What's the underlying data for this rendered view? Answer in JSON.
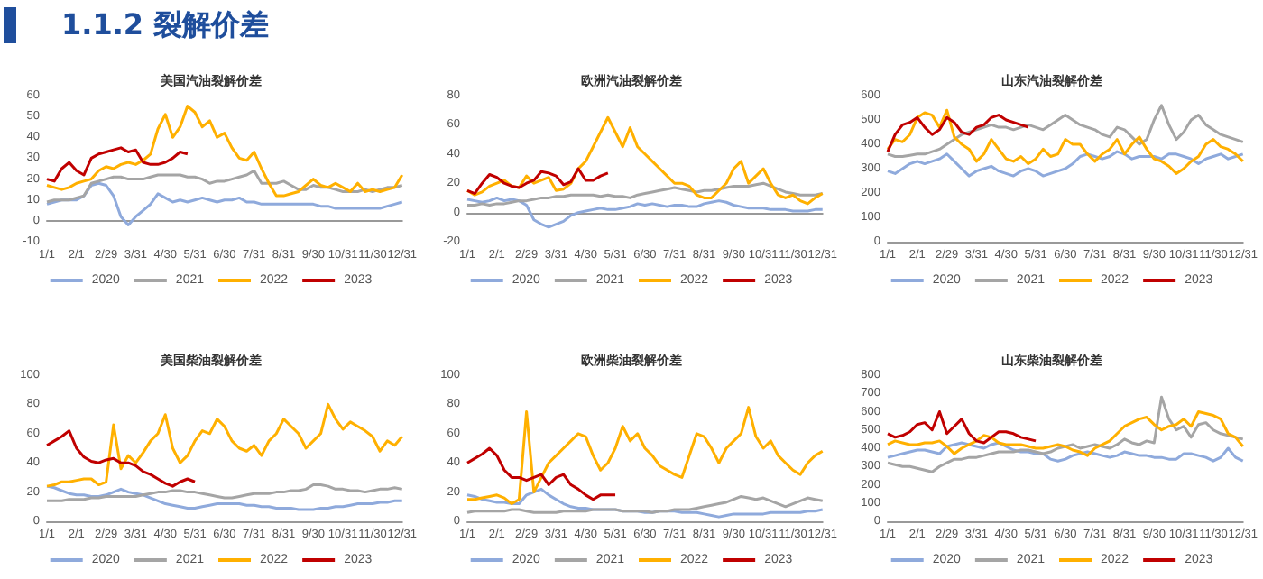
{
  "chart_data": [
    {
      "type": "other",
      "title": "1.1.2 裂解价差"
    },
    {
      "type": "line",
      "title": "美国汽油裂解价差",
      "legend": "bottom",
      "categories": [
        "1/1",
        null,
        null,
        null,
        "2/1",
        null,
        null,
        null,
        "2/29",
        null,
        null,
        null,
        "3/31",
        null,
        null,
        null,
        "4/30",
        null,
        null,
        null,
        "5/31",
        null,
        null,
        null,
        "6/30",
        null,
        null,
        null,
        "7/31",
        null,
        null,
        null,
        "8/31",
        null,
        null,
        null,
        "9/30",
        null,
        null,
        null,
        "10/31",
        null,
        null,
        null,
        "11/30",
        null,
        null,
        null,
        "12/31"
      ],
      "ylim": [
        -10,
        60
      ],
      "yticks": [
        -10,
        0,
        10,
        20,
        30,
        40,
        50,
        60
      ],
      "series": [
        {
          "name": "2020",
          "color": "#8faadc",
          "values": [
            8,
            9,
            10,
            10,
            10,
            12,
            17,
            18,
            17,
            12,
            2,
            -2,
            2,
            5,
            8,
            13,
            11,
            9,
            10,
            9,
            10,
            11,
            10,
            9,
            10,
            10,
            11,
            9,
            9,
            8,
            8,
            8,
            8,
            8,
            8,
            8,
            8,
            7,
            7,
            6,
            6,
            6,
            6,
            6,
            6,
            6,
            7,
            8,
            9
          ]
        },
        {
          "name": "2021",
          "color": "#a5a5a5",
          "values": [
            9,
            10,
            10,
            10,
            11,
            12,
            18,
            19,
            20,
            21,
            21,
            20,
            20,
            20,
            21,
            22,
            22,
            22,
            22,
            21,
            21,
            20,
            18,
            19,
            19,
            20,
            21,
            22,
            24,
            18,
            18,
            18,
            19,
            17,
            15,
            15,
            17,
            16,
            16,
            15,
            14,
            14,
            14,
            15,
            14,
            15,
            16,
            16,
            17
          ]
        },
        {
          "name": "2022",
          "color": "#ffb000",
          "values": [
            17,
            16,
            15,
            16,
            18,
            19,
            20,
            24,
            26,
            25,
            27,
            28,
            27,
            29,
            32,
            44,
            51,
            40,
            45,
            55,
            52,
            45,
            48,
            40,
            42,
            35,
            30,
            29,
            33,
            25,
            18,
            12,
            12,
            13,
            14,
            17,
            20,
            17,
            16,
            18,
            16,
            14,
            18,
            14,
            15,
            14,
            15,
            16,
            22
          ]
        },
        {
          "name": "2023",
          "color": "#c00000",
          "values": [
            20,
            19,
            25,
            28,
            24,
            22,
            30,
            32,
            33,
            34,
            35,
            33,
            34,
            28,
            27,
            27,
            28,
            30,
            33,
            32,
            null,
            null,
            null,
            null,
            null,
            null,
            null,
            null,
            null,
            null,
            null,
            null,
            null,
            null,
            null,
            null,
            null,
            null,
            null,
            null,
            null,
            null,
            null,
            null,
            null,
            null,
            null,
            null,
            null
          ]
        }
      ]
    },
    {
      "type": "line",
      "title": "欧洲汽油裂解价差",
      "legend": "bottom",
      "categories": [
        "1/1",
        null,
        null,
        null,
        "2/1",
        null,
        null,
        null,
        "2/29",
        null,
        null,
        null,
        "3/31",
        null,
        null,
        null,
        "4/30",
        null,
        null,
        null,
        "5/31",
        null,
        null,
        null,
        "6/30",
        null,
        null,
        null,
        "7/31",
        null,
        null,
        null,
        "8/31",
        null,
        null,
        null,
        "9/30",
        null,
        null,
        null,
        "10/31",
        null,
        null,
        null,
        "11/30",
        null,
        null,
        null,
        "12/31"
      ],
      "ylim": [
        -20,
        80
      ],
      "yticks": [
        -20,
        0,
        20,
        40,
        60,
        80
      ],
      "series": [
        {
          "name": "2020",
          "color": "#8faadc",
          "values": [
            9,
            8,
            7,
            8,
            10,
            8,
            9,
            8,
            5,
            -5,
            -8,
            -10,
            -8,
            -6,
            -2,
            0,
            1,
            2,
            3,
            2,
            2,
            3,
            4,
            6,
            5,
            6,
            5,
            4,
            5,
            5,
            4,
            4,
            6,
            7,
            8,
            7,
            5,
            4,
            3,
            3,
            3,
            2,
            2,
            2,
            1,
            1,
            1,
            2,
            2
          ]
        },
        {
          "name": "2021",
          "color": "#a5a5a5",
          "values": [
            5,
            5,
            6,
            5,
            6,
            6,
            7,
            8,
            8,
            9,
            10,
            10,
            11,
            11,
            12,
            12,
            12,
            12,
            11,
            12,
            11,
            11,
            10,
            12,
            13,
            14,
            15,
            16,
            17,
            16,
            15,
            14,
            15,
            15,
            16,
            17,
            18,
            18,
            18,
            19,
            20,
            18,
            16,
            14,
            13,
            12,
            12,
            12,
            13
          ]
        },
        {
          "name": "2022",
          "color": "#ffb000",
          "values": [
            15,
            12,
            14,
            18,
            20,
            22,
            18,
            17,
            25,
            20,
            22,
            24,
            15,
            16,
            20,
            30,
            35,
            45,
            55,
            65,
            55,
            45,
            58,
            45,
            40,
            35,
            30,
            25,
            20,
            20,
            18,
            12,
            10,
            10,
            15,
            20,
            30,
            35,
            20,
            25,
            30,
            20,
            12,
            10,
            12,
            8,
            6,
            10,
            13
          ]
        },
        {
          "name": "2023",
          "color": "#c00000",
          "values": [
            15,
            13,
            20,
            26,
            24,
            20,
            18,
            17,
            20,
            22,
            28,
            27,
            25,
            19,
            21,
            30,
            22,
            22,
            25,
            27,
            null,
            null,
            null,
            null,
            null,
            null,
            null,
            null,
            null,
            null,
            null,
            null,
            null,
            null,
            null,
            null,
            null,
            null,
            null,
            null,
            null,
            null,
            null,
            null,
            null,
            null,
            null,
            null,
            null
          ]
        }
      ]
    },
    {
      "type": "line",
      "title": "山东汽油裂解价差",
      "legend": "bottom",
      "categories": [
        "1/1",
        null,
        null,
        null,
        "2/1",
        null,
        null,
        null,
        "2/29",
        null,
        null,
        null,
        "3/31",
        null,
        null,
        null,
        "4/30",
        null,
        null,
        null,
        "5/31",
        null,
        null,
        null,
        "6/30",
        null,
        null,
        null,
        "7/31",
        null,
        null,
        null,
        "8/31",
        null,
        null,
        null,
        "9/30",
        null,
        null,
        null,
        "10/31",
        null,
        null,
        null,
        "11/30",
        null,
        null,
        null,
        "12/31"
      ],
      "ylim": [
        0,
        600
      ],
      "yticks": [
        0,
        100,
        200,
        300,
        400,
        500,
        600
      ],
      "series": [
        {
          "name": "2020",
          "color": "#8faadc",
          "values": [
            290,
            280,
            300,
            320,
            330,
            320,
            330,
            340,
            360,
            330,
            300,
            270,
            290,
            300,
            310,
            290,
            280,
            270,
            290,
            300,
            290,
            270,
            280,
            290,
            300,
            320,
            350,
            360,
            350,
            340,
            350,
            370,
            360,
            340,
            350,
            350,
            350,
            340,
            360,
            360,
            350,
            340,
            320,
            340,
            350,
            360,
            340,
            350,
            360
          ]
        },
        {
          "name": "2021",
          "color": "#a5a5a5",
          "values": [
            360,
            350,
            350,
            355,
            360,
            360,
            370,
            380,
            400,
            420,
            440,
            450,
            460,
            470,
            480,
            470,
            470,
            460,
            470,
            480,
            470,
            460,
            480,
            500,
            520,
            500,
            480,
            470,
            460,
            440,
            430,
            470,
            460,
            430,
            400,
            420,
            500,
            560,
            480,
            420,
            450,
            500,
            520,
            480,
            460,
            440,
            430,
            420,
            410
          ]
        },
        {
          "name": "2022",
          "color": "#ffb000",
          "values": [
            380,
            420,
            410,
            440,
            510,
            530,
            520,
            470,
            540,
            430,
            400,
            380,
            330,
            360,
            420,
            380,
            340,
            330,
            350,
            320,
            340,
            380,
            350,
            360,
            420,
            400,
            400,
            360,
            330,
            360,
            380,
            420,
            360,
            400,
            430,
            380,
            340,
            330,
            310,
            280,
            300,
            330,
            350,
            400,
            420,
            390,
            380,
            360,
            330
          ]
        },
        {
          "name": "2023",
          "color": "#c00000",
          "values": [
            370,
            440,
            480,
            490,
            510,
            470,
            440,
            460,
            510,
            490,
            450,
            440,
            470,
            480,
            510,
            520,
            500,
            490,
            480,
            470,
            null,
            null,
            null,
            null,
            null,
            null,
            null,
            null,
            null,
            null,
            null,
            null,
            null,
            null,
            null,
            null,
            null,
            null,
            null,
            null,
            null,
            null,
            null,
            null,
            null,
            null,
            null,
            null,
            null
          ]
        }
      ]
    },
    {
      "type": "line",
      "title": "美国柴油裂解价差",
      "legend": "bottom",
      "categories": [
        "1/1",
        null,
        null,
        null,
        "2/1",
        null,
        null,
        null,
        "2/29",
        null,
        null,
        null,
        "3/31",
        null,
        null,
        null,
        "4/30",
        null,
        null,
        null,
        "5/31",
        null,
        null,
        null,
        "6/30",
        null,
        null,
        null,
        "7/31",
        null,
        null,
        null,
        "8/31",
        null,
        null,
        null,
        "9/30",
        null,
        null,
        null,
        "10/31",
        null,
        null,
        null,
        "11/30",
        null,
        null,
        null,
        "12/31"
      ],
      "ylim": [
        0,
        100
      ],
      "yticks": [
        0,
        20,
        40,
        60,
        80,
        100
      ],
      "series": [
        {
          "name": "2020",
          "color": "#8faadc",
          "values": [
            24,
            23,
            21,
            19,
            18,
            18,
            17,
            17,
            18,
            20,
            22,
            20,
            19,
            18,
            16,
            14,
            12,
            11,
            10,
            9,
            9,
            10,
            11,
            12,
            12,
            12,
            12,
            11,
            11,
            10,
            10,
            9,
            9,
            9,
            8,
            8,
            8,
            9,
            9,
            10,
            10,
            11,
            12,
            12,
            12,
            13,
            13,
            14,
            14
          ]
        },
        {
          "name": "2021",
          "color": "#a5a5a5",
          "values": [
            14,
            14,
            14,
            15,
            15,
            15,
            16,
            16,
            17,
            17,
            17,
            17,
            17,
            18,
            19,
            20,
            20,
            21,
            21,
            20,
            20,
            19,
            18,
            17,
            16,
            16,
            17,
            18,
            19,
            19,
            19,
            20,
            20,
            21,
            21,
            22,
            25,
            25,
            24,
            22,
            22,
            21,
            21,
            20,
            21,
            22,
            22,
            23,
            22
          ]
        },
        {
          "name": "2022",
          "color": "#ffb000",
          "values": [
            24,
            25,
            27,
            27,
            28,
            29,
            29,
            25,
            27,
            66,
            36,
            45,
            40,
            47,
            55,
            60,
            73,
            50,
            40,
            45,
            55,
            62,
            60,
            70,
            65,
            55,
            50,
            48,
            52,
            45,
            55,
            60,
            70,
            65,
            60,
            50,
            55,
            60,
            80,
            70,
            63,
            68,
            65,
            62,
            58,
            48,
            55,
            52,
            58
          ]
        },
        {
          "name": "2023",
          "color": "#c00000",
          "values": [
            52,
            55,
            58,
            62,
            50,
            44,
            41,
            40,
            42,
            43,
            40,
            40,
            38,
            34,
            32,
            29,
            26,
            24,
            27,
            29,
            27,
            null,
            null,
            null,
            null,
            null,
            null,
            null,
            null,
            null,
            null,
            null,
            null,
            null,
            null,
            null,
            null,
            null,
            null,
            null,
            null,
            null,
            null,
            null,
            null,
            null,
            null,
            null,
            null
          ]
        }
      ]
    },
    {
      "type": "line",
      "title": "欧洲柴油裂解价差",
      "legend": "bottom",
      "categories": [
        "1/1",
        null,
        null,
        null,
        "2/1",
        null,
        null,
        null,
        "2/29",
        null,
        null,
        null,
        "3/31",
        null,
        null,
        null,
        "4/30",
        null,
        null,
        null,
        "5/31",
        null,
        null,
        null,
        "6/30",
        null,
        null,
        null,
        "7/31",
        null,
        null,
        null,
        "8/31",
        null,
        null,
        null,
        "9/30",
        null,
        null,
        null,
        "10/31",
        null,
        null,
        null,
        "11/30",
        null,
        null,
        null,
        "12/31"
      ],
      "ylim": [
        0,
        100
      ],
      "yticks": [
        0,
        20,
        40,
        60,
        80,
        100
      ],
      "series": [
        {
          "name": "2020",
          "color": "#8faadc",
          "values": [
            18,
            17,
            15,
            14,
            13,
            13,
            12,
            12,
            18,
            20,
            22,
            18,
            15,
            12,
            10,
            9,
            9,
            8,
            8,
            8,
            8,
            7,
            7,
            7,
            6,
            6,
            7,
            7,
            7,
            6,
            6,
            6,
            5,
            4,
            3,
            4,
            5,
            5,
            5,
            5,
            5,
            6,
            6,
            6,
            6,
            6,
            7,
            7,
            8
          ]
        },
        {
          "name": "2021",
          "color": "#a5a5a5",
          "values": [
            6,
            7,
            7,
            7,
            7,
            7,
            8,
            8,
            7,
            6,
            6,
            6,
            6,
            7,
            7,
            7,
            7,
            8,
            8,
            8,
            8,
            7,
            7,
            7,
            7,
            6,
            7,
            7,
            8,
            8,
            8,
            9,
            10,
            11,
            12,
            13,
            15,
            17,
            16,
            15,
            16,
            14,
            12,
            10,
            12,
            14,
            16,
            15,
            14
          ]
        },
        {
          "name": "2022",
          "color": "#ffb000",
          "values": [
            15,
            15,
            16,
            17,
            18,
            16,
            12,
            15,
            75,
            20,
            30,
            40,
            45,
            50,
            55,
            60,
            58,
            45,
            35,
            40,
            50,
            65,
            55,
            60,
            50,
            45,
            38,
            35,
            32,
            30,
            45,
            60,
            58,
            50,
            40,
            50,
            55,
            60,
            78,
            58,
            50,
            55,
            45,
            40,
            35,
            32,
            40,
            45,
            48
          ]
        },
        {
          "name": "2023",
          "color": "#c00000",
          "values": [
            40,
            43,
            46,
            50,
            45,
            35,
            30,
            30,
            28,
            30,
            32,
            25,
            30,
            32,
            25,
            22,
            18,
            15,
            18,
            18,
            18,
            null,
            null,
            null,
            null,
            null,
            null,
            null,
            null,
            null,
            null,
            null,
            null,
            null,
            null,
            null,
            null,
            null,
            null,
            null,
            null,
            null,
            null,
            null,
            null,
            null,
            null,
            null,
            null
          ]
        }
      ]
    },
    {
      "type": "line",
      "title": "山东柴油裂解价差",
      "legend": "bottom",
      "categories": [
        "1/1",
        null,
        null,
        null,
        "2/1",
        null,
        null,
        null,
        "2/29",
        null,
        null,
        null,
        "3/31",
        null,
        null,
        null,
        "4/30",
        null,
        null,
        null,
        "5/31",
        null,
        null,
        null,
        "6/30",
        null,
        null,
        null,
        "7/31",
        null,
        null,
        null,
        "8/31",
        null,
        null,
        null,
        "9/30",
        null,
        null,
        null,
        "10/31",
        null,
        null,
        null,
        "11/30",
        null,
        null,
        null,
        "12/31"
      ],
      "ylim": [
        0,
        800
      ],
      "yticks": [
        0,
        100,
        200,
        300,
        400,
        500,
        600,
        700,
        800
      ],
      "series": [
        {
          "name": "2020",
          "color": "#8faadc",
          "values": [
            350,
            360,
            370,
            380,
            390,
            390,
            380,
            370,
            410,
            420,
            430,
            420,
            410,
            400,
            420,
            430,
            410,
            390,
            380,
            380,
            370,
            370,
            340,
            330,
            340,
            360,
            370,
            380,
            370,
            360,
            350,
            360,
            380,
            370,
            360,
            360,
            350,
            350,
            340,
            340,
            370,
            370,
            360,
            350,
            330,
            350,
            400,
            350,
            330
          ]
        },
        {
          "name": "2021",
          "color": "#a5a5a5",
          "values": [
            320,
            310,
            300,
            300,
            290,
            280,
            270,
            300,
            320,
            340,
            340,
            350,
            350,
            360,
            370,
            380,
            380,
            380,
            390,
            390,
            380,
            370,
            380,
            400,
            410,
            420,
            400,
            410,
            420,
            410,
            400,
            420,
            450,
            430,
            420,
            440,
            430,
            680,
            560,
            500,
            520,
            460,
            530,
            540,
            500,
            480,
            470,
            460,
            450
          ]
        },
        {
          "name": "2022",
          "color": "#ffb000",
          "values": [
            420,
            440,
            430,
            420,
            420,
            430,
            430,
            440,
            410,
            370,
            400,
            420,
            440,
            470,
            460,
            430,
            420,
            420,
            420,
            410,
            400,
            400,
            410,
            420,
            410,
            390,
            380,
            360,
            400,
            420,
            440,
            480,
            520,
            540,
            560,
            570,
            530,
            500,
            520,
            530,
            560,
            520,
            600,
            590,
            580,
            560,
            480,
            460,
            410
          ]
        },
        {
          "name": "2023",
          "color": "#c00000",
          "values": [
            480,
            460,
            470,
            490,
            530,
            540,
            500,
            600,
            480,
            520,
            560,
            480,
            440,
            430,
            460,
            490,
            490,
            480,
            460,
            450,
            440,
            null,
            null,
            null,
            null,
            null,
            null,
            null,
            null,
            null,
            null,
            null,
            null,
            null,
            null,
            null,
            null,
            null,
            null,
            null,
            null,
            null,
            null,
            null,
            null,
            null,
            null,
            null,
            null
          ]
        }
      ]
    }
  ]
}
